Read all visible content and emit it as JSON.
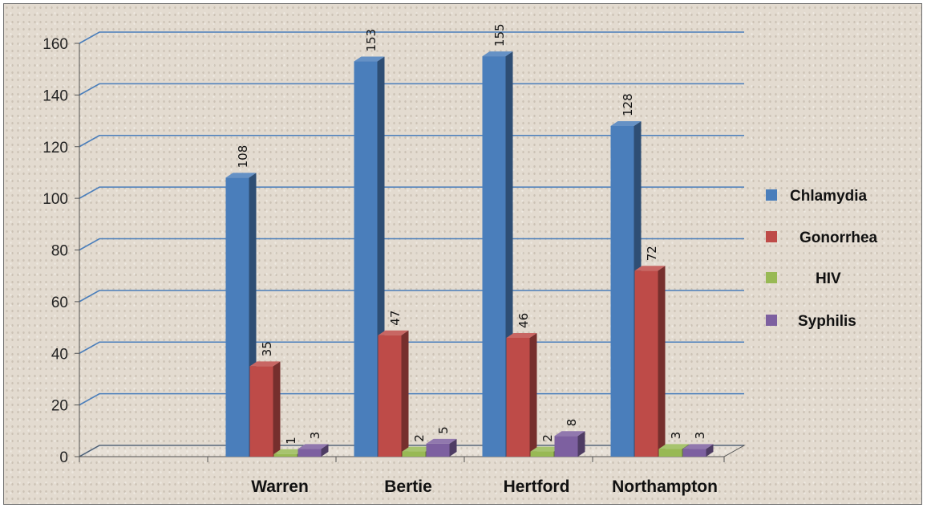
{
  "chart_data": {
    "type": "bar",
    "style": "3d-clustered-column",
    "title": "",
    "xlabel": "",
    "ylabel": "",
    "categories": [
      "Warren",
      "Bertie",
      "Hertford",
      "Northampton"
    ],
    "series": [
      {
        "name": "Chlamydia",
        "color": "#4a7ebb",
        "values": [
          108,
          153,
          155,
          128
        ]
      },
      {
        "name": "Gonorrhea",
        "color": "#be4b48",
        "values": [
          35,
          47,
          46,
          72
        ]
      },
      {
        "name": "HIV",
        "color": "#98b954",
        "values": [
          1,
          2,
          2,
          3
        ]
      },
      {
        "name": "Syphilis",
        "color": "#7d60a0",
        "values": [
          3,
          5,
          8,
          3
        ]
      }
    ],
    "data_labels": [
      [
        "108",
        "153",
        "155",
        "128"
      ],
      [
        "35",
        "47",
        "46",
        "72"
      ],
      [
        "1",
        "2",
        "2",
        "3"
      ],
      [
        "3",
        "5",
        "8",
        "3"
      ]
    ],
    "ylim": [
      0,
      160
    ],
    "yticks": [
      "0",
      "20",
      "40",
      "60",
      "80",
      "100",
      "120",
      "140",
      "160"
    ],
    "grid": true,
    "legend": "right",
    "colors": {
      "gridline": "#4a7ebb",
      "axis": "#555555"
    }
  }
}
